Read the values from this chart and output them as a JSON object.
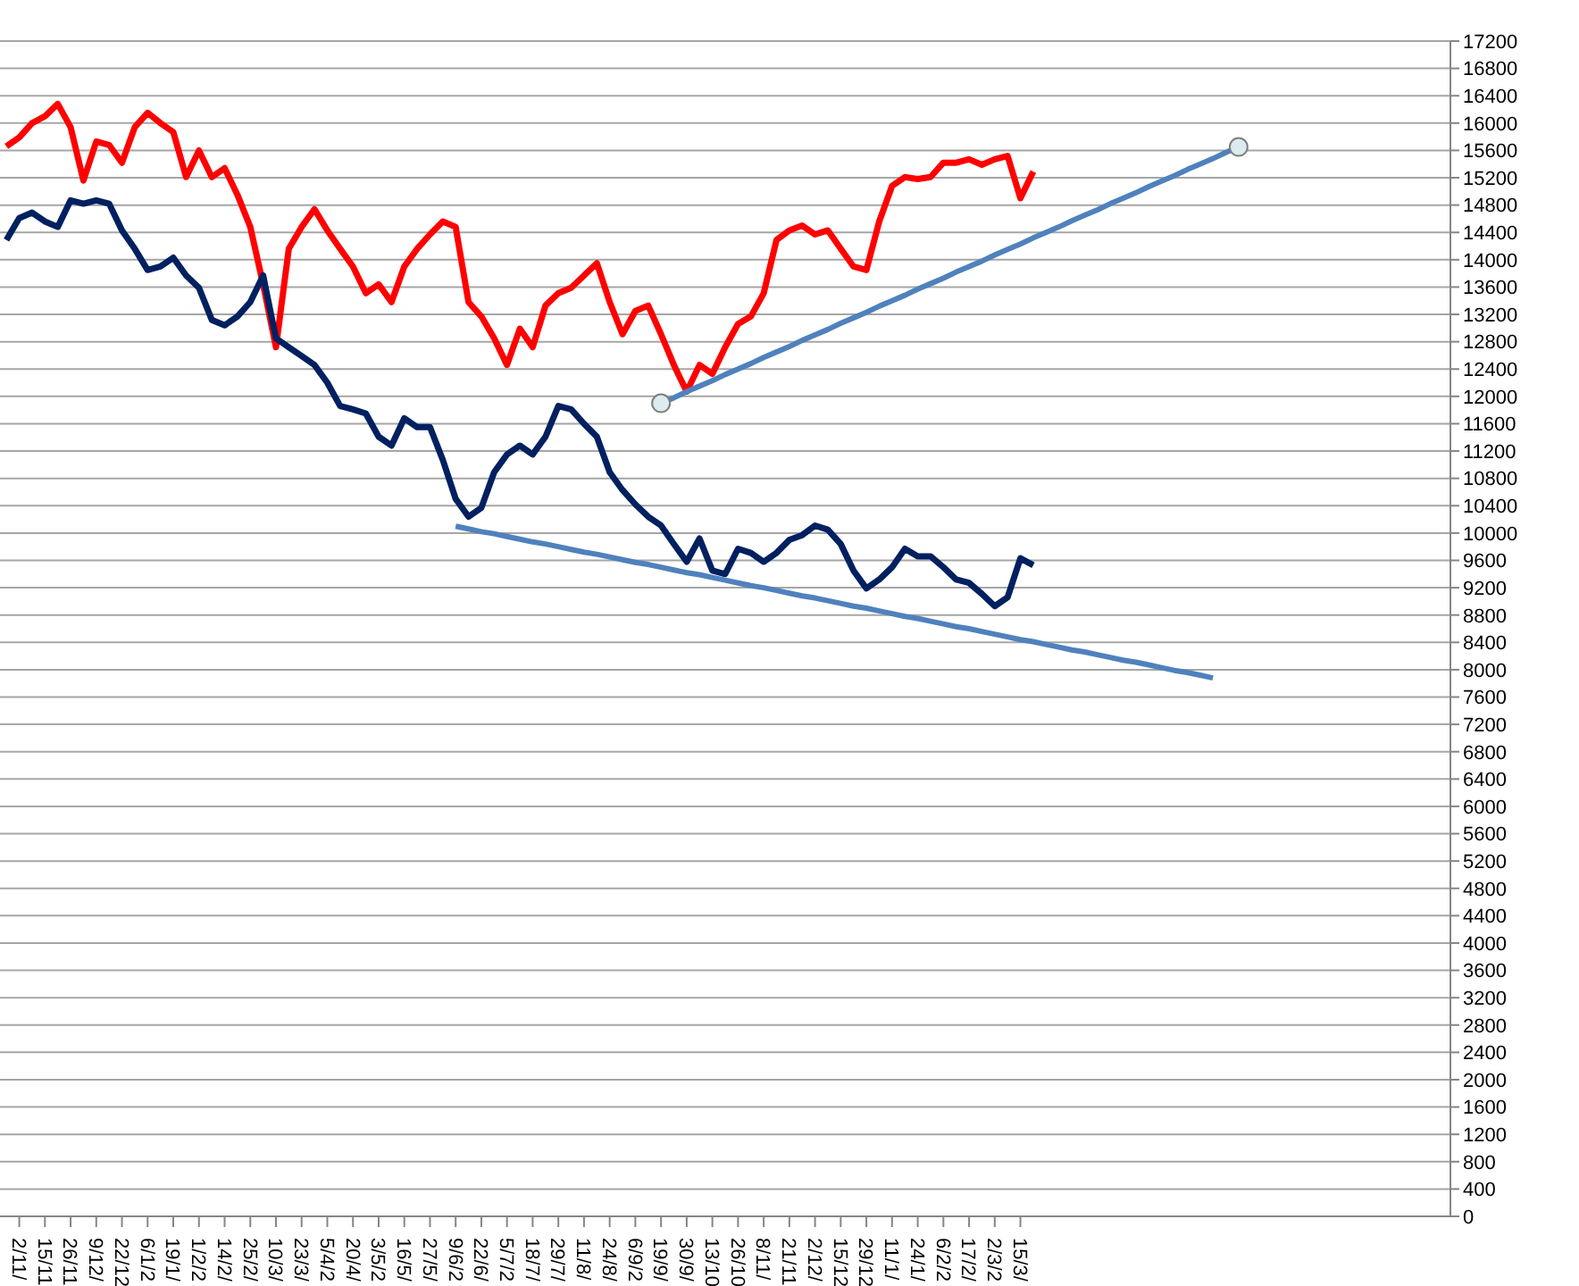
{
  "chart_data": {
    "type": "line",
    "categories": [
      null,
      "2/11/",
      null,
      "15/11",
      null,
      "26/11",
      null,
      "9/12/",
      null,
      "22/12",
      null,
      "6/1/2",
      null,
      "19/1/",
      null,
      "1/2/2",
      null,
      "14/2/",
      null,
      "25/2/",
      null,
      "10/3/",
      null,
      "23/3/",
      null,
      "5/4/2",
      null,
      "20/4/",
      null,
      "3/5/2",
      null,
      "16/5/",
      null,
      "27/5/",
      null,
      "9/6/2",
      null,
      "22/6/",
      null,
      "5/7/2",
      null,
      "18/7/",
      null,
      "29/7/",
      null,
      "11/8/",
      null,
      "24/8/",
      null,
      "6/9/2",
      null,
      "19/9/",
      null,
      "30/9/",
      null,
      "13/10",
      null,
      "26/10",
      null,
      "8/11/",
      null,
      "21/11",
      null,
      "2/12/",
      null,
      "15/12",
      null,
      "29/12",
      null,
      "11/1/",
      null,
      "24/1/",
      null,
      "6/2/2",
      null,
      "17/2/",
      null,
      "2/3/2",
      null,
      "15/3/",
      null,
      null,
      null,
      null,
      null,
      null,
      null,
      null,
      null,
      null,
      null,
      null,
      null,
      null,
      null,
      null,
      null,
      null,
      null,
      null,
      null,
      null,
      null,
      null,
      null,
      null,
      null,
      null,
      null,
      null,
      null,
      null,
      null
    ],
    "series": [
      {
        "color": "#ff0000",
        "marker": "none",
        "values": [
          15660,
          15790,
          16000,
          16100,
          16280,
          15940,
          15160,
          15730,
          15680,
          15420,
          15940,
          16150,
          16000,
          15870,
          15210,
          15600,
          15210,
          15340,
          14950,
          14480,
          13640,
          12720,
          14160,
          14480,
          14740,
          14430,
          14160,
          13900,
          13510,
          13640,
          13380,
          13900,
          14160,
          14370,
          14560,
          14480,
          13380,
          13170,
          12850,
          12460,
          12990,
          12720,
          13330,
          13510,
          13590,
          13770,
          13950,
          13380,
          12910,
          13250,
          13330,
          12910,
          12460,
          12070,
          12460,
          12330,
          12720,
          13060,
          13170,
          13510,
          14290,
          14430,
          14500,
          14370,
          14430,
          14160,
          13900,
          13850,
          14560,
          15080,
          15210,
          15180,
          15210,
          15420,
          15420,
          15470,
          15390,
          15470,
          15520,
          14900,
          15290,
          null,
          null,
          null,
          null,
          null,
          null,
          null,
          null,
          null,
          null,
          null,
          null,
          null,
          null,
          null,
          null,
          null,
          null,
          null,
          null,
          null,
          null,
          null,
          null,
          null,
          null,
          null,
          null,
          null,
          null,
          null,
          null
        ]
      },
      {
        "color": "#002060",
        "marker": "none",
        "values": [
          14290,
          14610,
          14690,
          14560,
          14480,
          14870,
          14820,
          14870,
          14820,
          14430,
          14160,
          13850,
          13900,
          14030,
          13770,
          13590,
          13120,
          13040,
          13170,
          13380,
          13770,
          12850,
          12720,
          12590,
          12460,
          12200,
          11860,
          11810,
          11750,
          11410,
          11280,
          11680,
          11550,
          11550,
          11070,
          10500,
          10240,
          10370,
          10890,
          11150,
          11280,
          11150,
          11410,
          11860,
          11810,
          11600,
          11410,
          10890,
          10630,
          10420,
          10240,
          10110,
          9840,
          9580,
          9920,
          9450,
          9400,
          9770,
          9710,
          9580,
          9710,
          9900,
          9970,
          10110,
          10050,
          9840,
          9450,
          9190,
          9320,
          9500,
          9770,
          9660,
          9660,
          9500,
          9320,
          9270,
          9110,
          8930,
          9060,
          9630,
          9530,
          null,
          null,
          null,
          null,
          null,
          null,
          null,
          null,
          null,
          null,
          null,
          null,
          null,
          null,
          null,
          null,
          null,
          null,
          null,
          null,
          null,
          null,
          null,
          null,
          null,
          null,
          null,
          null,
          null,
          null,
          null,
          null
        ]
      },
      {
        "type": "scatter",
        "color": "#dcebf0",
        "marker": "circle",
        "values": [
          null,
          null,
          null,
          null,
          null,
          null,
          null,
          null,
          null,
          null,
          null,
          null,
          null,
          null,
          null,
          null,
          null,
          null,
          null,
          null,
          null,
          null,
          null,
          null,
          null,
          null,
          null,
          null,
          null,
          null,
          null,
          null,
          null,
          null,
          null,
          null,
          null,
          null,
          null,
          null,
          null,
          null,
          null,
          null,
          null,
          null,
          null,
          null,
          null,
          null,
          null,
          11900,
          null,
          null,
          null,
          null,
          null,
          null,
          null,
          null,
          null,
          null,
          null,
          null,
          null,
          null,
          null,
          null,
          null,
          null,
          null,
          null,
          null,
          null,
          null,
          null,
          null,
          null,
          null,
          null,
          null,
          null,
          null,
          null,
          null,
          null,
          null,
          null,
          null,
          null,
          null,
          null,
          null,
          null,
          null,
          null,
          15650,
          null,
          null,
          null,
          null,
          null,
          null,
          null,
          null,
          null,
          null,
          null,
          null,
          null,
          null,
          null,
          null
        ]
      },
      {
        "type": "line",
        "color": "#4f81bd",
        "marker": "none",
        "values": [
          null,
          null,
          null,
          null,
          null,
          null,
          null,
          null,
          null,
          null,
          null,
          null,
          null,
          null,
          null,
          null,
          null,
          null,
          null,
          null,
          null,
          null,
          null,
          null,
          null,
          null,
          null,
          null,
          null,
          null,
          null,
          null,
          null,
          null,
          null,
          null,
          null,
          null,
          null,
          null,
          null,
          null,
          null,
          null,
          null,
          null,
          null,
          null,
          null,
          null,
          null,
          11900,
          11980,
          12070,
          12150,
          12230,
          12320,
          12400,
          12480,
          12570,
          12650,
          12730,
          12820,
          12900,
          12980,
          13070,
          13150,
          13230,
          13320,
          13400,
          13480,
          13570,
          13650,
          13730,
          13820,
          13900,
          13980,
          14070,
          14150,
          14230,
          14320,
          14400,
          14480,
          14570,
          14650,
          14730,
          14820,
          14900,
          14980,
          15070,
          15150,
          15230,
          15320,
          15400,
          15480,
          15570,
          15650,
          null,
          null,
          null,
          null,
          null,
          null,
          null,
          null,
          null,
          null,
          null,
          null,
          null,
          null,
          null,
          null
        ]
      },
      {
        "type": "line",
        "color": "#4f81bd",
        "marker": "none",
        "values": [
          null,
          null,
          null,
          null,
          null,
          null,
          null,
          null,
          null,
          null,
          null,
          null,
          null,
          null,
          null,
          null,
          null,
          null,
          null,
          null,
          null,
          null,
          null,
          null,
          null,
          null,
          null,
          null,
          null,
          null,
          null,
          null,
          null,
          null,
          null,
          10100,
          10060,
          10020,
          9990,
          9950,
          9910,
          9870,
          9840,
          9800,
          9760,
          9720,
          9690,
          9650,
          9610,
          9570,
          9540,
          9500,
          9460,
          9420,
          9390,
          9350,
          9310,
          9270,
          9230,
          9200,
          9160,
          9120,
          9080,
          9050,
          9010,
          8970,
          8930,
          8900,
          8860,
          8820,
          8780,
          8750,
          8710,
          8670,
          8630,
          8600,
          8560,
          8520,
          8480,
          8440,
          8410,
          8370,
          8330,
          8290,
          8260,
          8220,
          8180,
          8140,
          8110,
          8070,
          8030,
          7990,
          7960,
          7920,
          7880,
          null,
          null,
          null,
          null,
          null,
          null,
          null,
          null,
          null,
          null,
          null,
          null,
          null,
          null,
          null,
          null,
          null,
          null
        ]
      }
    ],
    "ylim": [
      0,
      17200
    ],
    "yticks": [
      0,
      400,
      800,
      1200,
      1600,
      2000,
      2400,
      2800,
      3200,
      3600,
      4000,
      4400,
      4800,
      5200,
      5600,
      6000,
      6400,
      6800,
      7200,
      7600,
      8000,
      8400,
      8800,
      9200,
      9600,
      10000,
      10400,
      10800,
      11200,
      11600,
      12000,
      12400,
      12800,
      13200,
      13600,
      14000,
      14400,
      14800,
      15200,
      15600,
      16000,
      16400,
      16800,
      17200
    ],
    "grid": "y",
    "line_style": "solid"
  }
}
